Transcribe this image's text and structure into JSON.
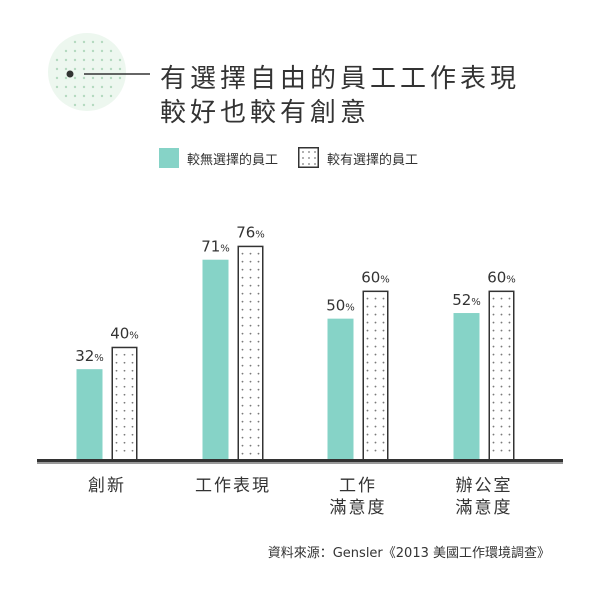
{
  "title": {
    "line1": "有選擇自由的員工工作表現",
    "line2": "較好也較有創意"
  },
  "legend": [
    {
      "label": "較無選擇的員工",
      "style": "solid"
    },
    {
      "label": "較有選擇的員工",
      "style": "dotted"
    }
  ],
  "source": "資料來源：Gensler《2013 美國工作環境調查》",
  "colors": {
    "teal": "#86d3c7",
    "line": "#333333",
    "dot": "#7a7a7a",
    "decor_dot": "#b4d9bf",
    "decor_bg": "#edf7ef"
  },
  "chart_data": {
    "type": "bar",
    "categories": [
      "創新",
      "工作表現",
      "工作\n滿意度",
      "辦公室\n滿意度"
    ],
    "series": [
      {
        "name": "較無選擇的員工",
        "values": [
          32,
          71,
          50,
          52
        ]
      },
      {
        "name": "較有選擇的員工",
        "values": [
          40,
          76,
          60,
          60
        ]
      }
    ],
    "unit": "%",
    "ylim": [
      0,
      100
    ],
    "grid": false,
    "legend_position": "top"
  }
}
